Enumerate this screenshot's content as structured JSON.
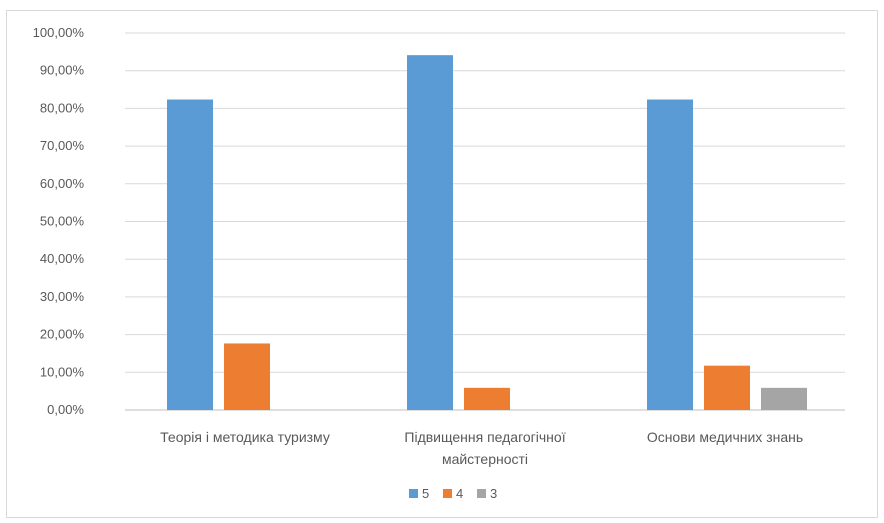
{
  "chart_data": {
    "type": "bar",
    "categories": [
      [
        "Теорія і методика туризму"
      ],
      [
        "Підвищення педагогічної",
        "майстерності"
      ],
      [
        "Основи медичних знань"
      ]
    ],
    "series": [
      {
        "name": "5",
        "color": "#5b9bd5",
        "values": [
          82.35,
          94.12,
          82.35
        ]
      },
      {
        "name": "4",
        "color": "#ed7d31",
        "values": [
          17.65,
          5.88,
          11.76
        ]
      },
      {
        "name": "3",
        "color": "#a5a5a5",
        "values": [
          0,
          0,
          5.88
        ]
      }
    ],
    "ylim": [
      0,
      100
    ],
    "yticks": [
      "0,00%",
      "10,00%",
      "20,00%",
      "30,00%",
      "40,00%",
      "50,00%",
      "60,00%",
      "70,00%",
      "80,00%",
      "90,00%",
      "100,00%"
    ],
    "grid": true,
    "legend_position": "bottom"
  }
}
